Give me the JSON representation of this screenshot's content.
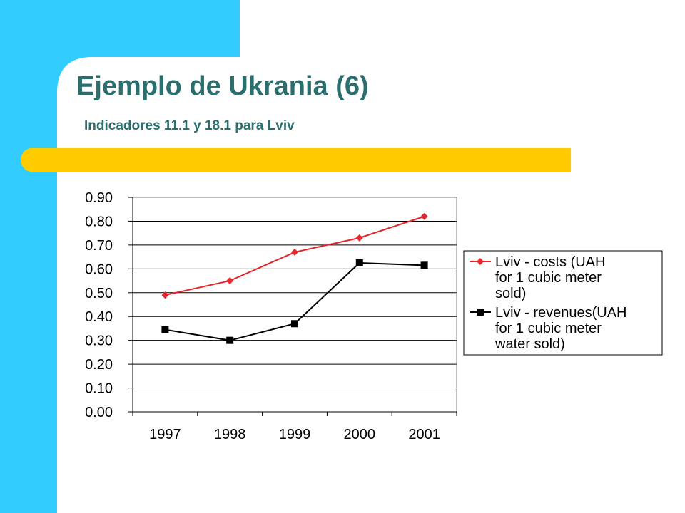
{
  "slide": {
    "title": "Ejemplo de Ukrania (6)",
    "subtitle": "Indicadores 11.1 y 18.1 para Lviv"
  },
  "colors": {
    "left_bar": "#33ccff",
    "accent_bar": "#ffcc00",
    "title": "#2a6f6e",
    "series_costs": "#e8252b",
    "series_revenues": "#000000"
  },
  "chart_data": {
    "type": "line",
    "x": [
      "1997",
      "1998",
      "1999",
      "2000",
      "2001"
    ],
    "series": [
      {
        "name": "Lviv - costs (UAH for 1 cubic meter sold)",
        "name_lines": [
          "Lviv - costs (UAH",
          "for 1 cubic meter",
          "sold)"
        ],
        "values": [
          0.49,
          0.55,
          0.67,
          0.73,
          0.82
        ],
        "marker": "diamond",
        "color": "#e8252b"
      },
      {
        "name": "Lviv - revenues(UAH for 1 cubic meter water sold)",
        "name_lines": [
          "Lviv - revenues(UAH",
          "for 1 cubic meter",
          "water sold)"
        ],
        "values": [
          0.345,
          0.3,
          0.37,
          0.625,
          0.615
        ],
        "marker": "square",
        "color": "#000000"
      }
    ],
    "yticks": [
      "0.00",
      "0.10",
      "0.20",
      "0.30",
      "0.40",
      "0.50",
      "0.60",
      "0.70",
      "0.80",
      "0.90"
    ],
    "ylim": [
      0,
      0.9
    ],
    "grid": "horizontal",
    "legend": "right"
  }
}
